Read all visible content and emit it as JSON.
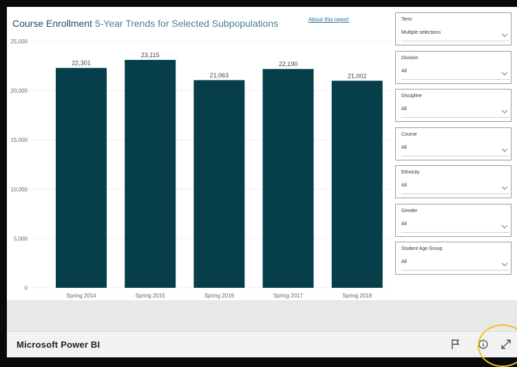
{
  "report": {
    "title_main": "Course Enrollment",
    "title_sub": " 5-Year Trends for Selected Subpopulations",
    "about_link": "About this report"
  },
  "chart_data": {
    "type": "bar",
    "categories": [
      "Spring 2014",
      "Spring 2015",
      "Spring 2016",
      "Spring 2017",
      "Spring 2018"
    ],
    "values": [
      22301,
      23115,
      21063,
      22190,
      21002
    ],
    "value_labels": [
      "22,301",
      "23,115",
      "21,063",
      "22,190",
      "21,002"
    ],
    "yticks": [
      0,
      5000,
      10000,
      15000,
      20000,
      25000
    ],
    "ytick_labels": [
      "0",
      "5,000",
      "10,000",
      "15,000",
      "20,000",
      "25,000"
    ],
    "ylim": [
      0,
      25000
    ],
    "bar_color": "#063f4a",
    "grid": true
  },
  "filters": [
    {
      "label": "Term",
      "value": "Multiple selections"
    },
    {
      "label": "Division",
      "value": "All"
    },
    {
      "label": "Discipline",
      "value": "All"
    },
    {
      "label": "Course",
      "value": "All"
    },
    {
      "label": "Ethnicity",
      "value": "All"
    },
    {
      "label": "Gender",
      "value": "All"
    },
    {
      "label": "Student Age Group",
      "value": "All"
    }
  ],
  "footer": {
    "app_name": "Microsoft Power BI",
    "icons": [
      "flag-icon",
      "info-icon",
      "expand-icon"
    ]
  },
  "colors": {
    "bar": "#063f4a",
    "title": "#1f4e5f",
    "highlight": "#f2c11c"
  }
}
